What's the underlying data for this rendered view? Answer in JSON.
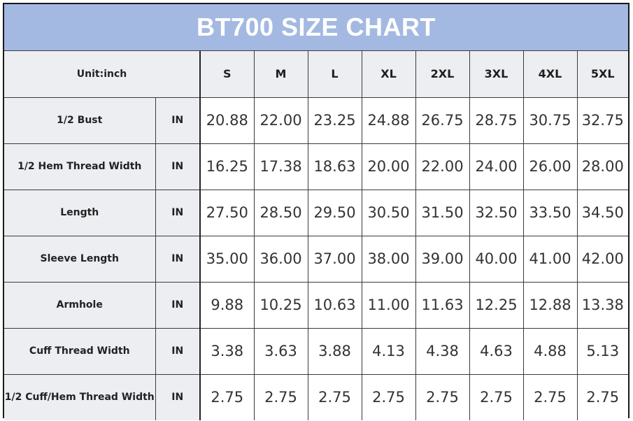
{
  "title": "BT700 SIZE CHART",
  "unit_label": "Unit:inch",
  "sizes": [
    "S",
    "M",
    "L",
    "XL",
    "2XL",
    "3XL",
    "4XL",
    "5XL"
  ],
  "rows": [
    {
      "label": "1/2 Bust",
      "unit": "IN",
      "values": [
        "20.88",
        "22.00",
        "23.25",
        "24.88",
        "26.75",
        "28.75",
        "30.75",
        "32.75"
      ]
    },
    {
      "label": "1/2 Hem Thread Width",
      "unit": "IN",
      "values": [
        "16.25",
        "17.38",
        "18.63",
        "20.00",
        "22.00",
        "24.00",
        "26.00",
        "28.00"
      ]
    },
    {
      "label": "Length",
      "unit": "IN",
      "values": [
        "27.50",
        "28.50",
        "29.50",
        "30.50",
        "31.50",
        "32.50",
        "33.50",
        "34.50"
      ]
    },
    {
      "label": "Sleeve Length",
      "unit": "IN",
      "values": [
        "35.00",
        "36.00",
        "37.00",
        "38.00",
        "39.00",
        "40.00",
        "41.00",
        "42.00"
      ]
    },
    {
      "label": "Armhole",
      "unit": "IN",
      "values": [
        "9.88",
        "10.25",
        "10.63",
        "11.00",
        "11.63",
        "12.25",
        "12.88",
        "13.38"
      ]
    },
    {
      "label": "Cuff Thread Width",
      "unit": "IN",
      "values": [
        "3.38",
        "3.63",
        "3.88",
        "4.13",
        "4.38",
        "4.63",
        "4.88",
        "5.13"
      ]
    },
    {
      "label": "1/2 Cuff/Hem Thread Width",
      "unit": "IN",
      "values": [
        "2.75",
        "2.75",
        "2.75",
        "2.75",
        "2.75",
        "2.75",
        "2.75",
        "2.75"
      ]
    }
  ]
}
